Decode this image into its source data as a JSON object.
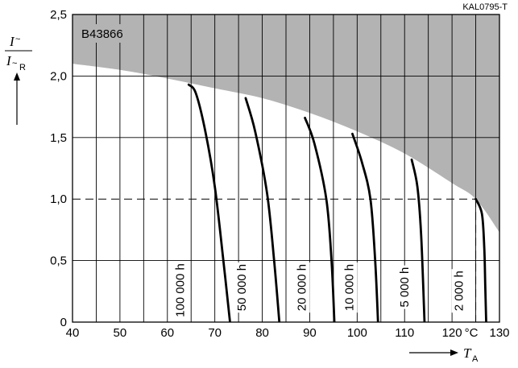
{
  "doc_code": "KAL0795-T",
  "product": "B43866",
  "chart_data": {
    "type": "line",
    "title": "",
    "xlabel": "T_A",
    "ylabel": "I~ / I~R",
    "x_unit": "°C",
    "xlim": [
      40,
      130
    ],
    "ylim": [
      0,
      2.5
    ],
    "x_ticks": [
      "40",
      "50",
      "60",
      "70",
      "80",
      "90",
      "100",
      "110",
      "120",
      "130"
    ],
    "y_ticks": [
      "0",
      "0,5",
      "1,0",
      "1,5",
      "2,0",
      "2,5"
    ],
    "grid": true,
    "reference_line_y": 1.0,
    "reference_line_x": 125,
    "forbidden_region_boundary": [
      [
        40,
        2.1
      ],
      [
        50,
        2.05
      ],
      [
        60,
        1.98
      ],
      [
        70,
        1.9
      ],
      [
        80,
        1.82
      ],
      [
        90,
        1.7
      ],
      [
        100,
        1.55
      ],
      [
        110,
        1.37
      ],
      [
        120,
        1.13
      ],
      [
        125,
        1.0
      ],
      [
        130,
        0.73
      ]
    ],
    "series": [
      {
        "name": "100 000 h",
        "points": [
          [
            64.5,
            1.93
          ],
          [
            66,
            1.86
          ],
          [
            68,
            1.55
          ],
          [
            70,
            1.1
          ],
          [
            71.8,
            0.5
          ],
          [
            73.2,
            0
          ]
        ]
      },
      {
        "name": "50 000 h",
        "points": [
          [
            76.5,
            1.82
          ],
          [
            78.5,
            1.55
          ],
          [
            81,
            1.05
          ],
          [
            82.5,
            0.5
          ],
          [
            83.6,
            0
          ]
        ]
      },
      {
        "name": "20 000 h",
        "points": [
          [
            89,
            1.66
          ],
          [
            91,
            1.45
          ],
          [
            93.5,
            1.0
          ],
          [
            94.6,
            0.5
          ],
          [
            95.2,
            0
          ]
        ]
      },
      {
        "name": "10 000 h",
        "points": [
          [
            99,
            1.53
          ],
          [
            101,
            1.3
          ],
          [
            102.8,
            1.0
          ],
          [
            103.8,
            0.5
          ],
          [
            104.4,
            0
          ]
        ]
      },
      {
        "name": "5 000 h",
        "points": [
          [
            111.5,
            1.32
          ],
          [
            112.7,
            1.1
          ],
          [
            113.5,
            0.7
          ],
          [
            114.2,
            0
          ]
        ]
      },
      {
        "name": "2 000 h",
        "points": [
          [
            125,
            1.0
          ],
          [
            126.3,
            0.88
          ],
          [
            126.8,
            0.6
          ],
          [
            127,
            0.3
          ],
          [
            127.2,
            0
          ]
        ]
      }
    ]
  }
}
